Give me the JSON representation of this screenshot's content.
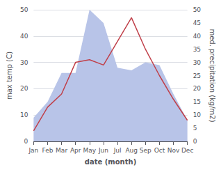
{
  "chart_data": {
    "type": "line",
    "xlabel": "date (month)",
    "ylabel": "max temp (C)",
    "y2label": "med. precipitation (kg/m2)",
    "categories": [
      "Jan",
      "Feb",
      "Mar",
      "Apr",
      "May",
      "Jun",
      "Jul",
      "Aug",
      "Sep",
      "Oct",
      "Nov",
      "Dec"
    ],
    "series": [
      {
        "type": "area",
        "color": "#b8c4e8",
        "axis": "y2",
        "values": [
          9,
          15,
          26,
          26,
          50,
          45,
          28,
          27,
          30,
          29,
          18,
          8
        ]
      },
      {
        "type": "line",
        "color": "#c0404a",
        "axis": "y",
        "values": [
          4,
          13,
          18,
          30,
          31,
          29,
          38,
          47,
          35,
          25,
          16,
          8
        ]
      }
    ],
    "ylim": [
      0,
      50
    ],
    "yticks": [
      0,
      10,
      20,
      30,
      40,
      50
    ],
    "y2lim": [
      0,
      50
    ],
    "y2ticks": [
      0,
      5,
      10,
      15,
      20,
      25,
      30,
      35,
      40,
      45,
      50
    ],
    "grid": true
  }
}
